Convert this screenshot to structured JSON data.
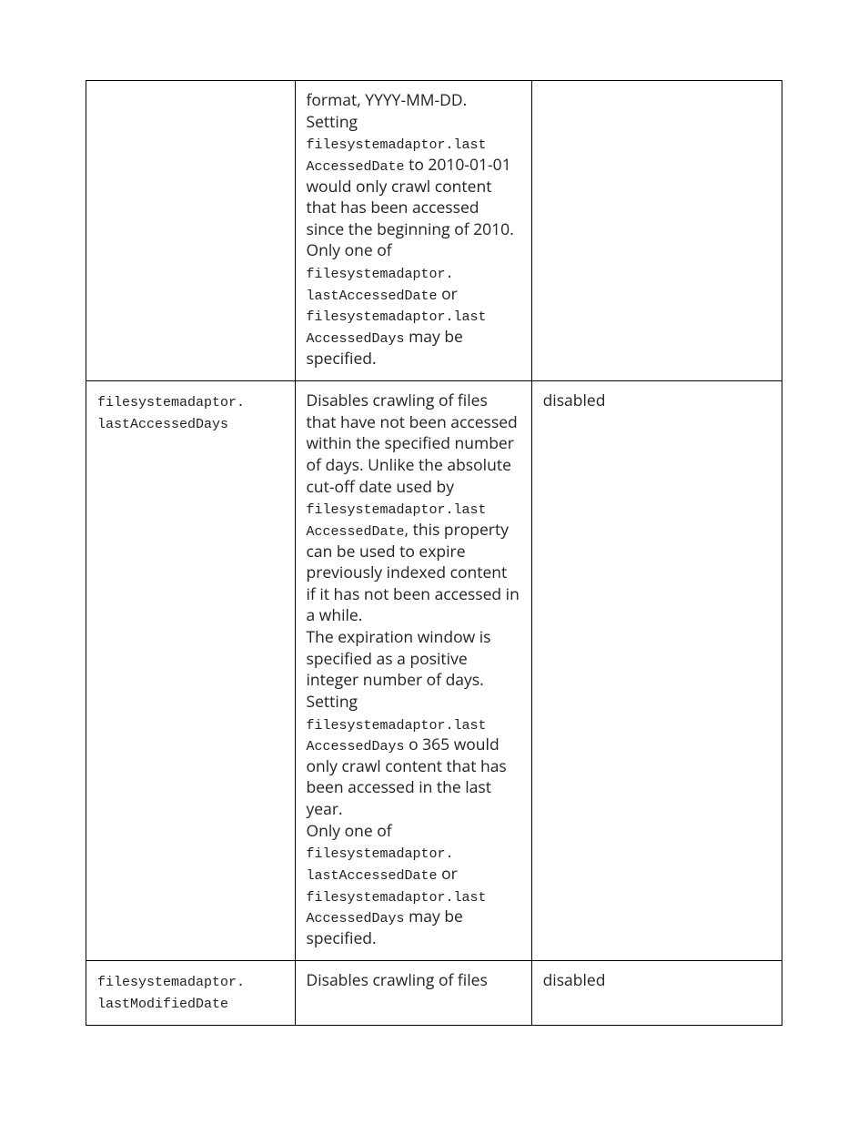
{
  "rows": [
    {
      "name_html": "",
      "desc_html": "format, YYYY-MM-DD.<br>Setting <span class=\"mono\">filesystemadaptor.last<br>AccessedDate</span> to 2010-01-01 would only crawl content that has been accessed since the beginning of 2010.<br>Only one of <span class=\"mono\">filesystemadaptor.<br>lastAccessedDate</span> or <span class=\"mono\">filesystemadaptor.last<br>AccessedDays</span> may be specified.",
      "value": ""
    },
    {
      "name_html": "<span class=\"mono\">filesystemadaptor.<br>lastAccessedDays</span>",
      "desc_html": "Disables crawling of files that have not been accessed within the specified number of days. Unlike the absolute cut-off date used by <span class=\"mono\">filesystemadaptor.last<br>AccessedDate</span>, this property can be used to expire previously indexed content if it has not been accessed in a while.<br>The expiration window is specified as a positive integer number of days. Setting <span class=\"mono\">filesystemadaptor.last<br>AccessedDays</span>&nbsp;o 365 would only crawl content that has been accessed in the last year.<br>Only one of <span class=\"mono\">filesystemadaptor.<br>lastAccessedDate</span> or <span class=\"mono\">filesystemadaptor.last<br>AccessedDays</span> may be specified.",
      "value": "disabled"
    },
    {
      "name_html": "<span class=\"mono\">filesystemadaptor.<br>lastModifiedDate</span>",
      "desc_html": "Disables crawling of files",
      "value": "disabled"
    }
  ]
}
